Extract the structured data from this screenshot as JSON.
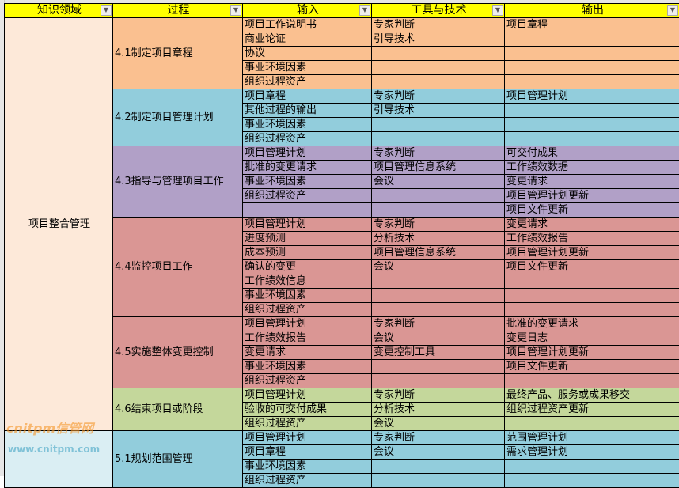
{
  "headers": [
    "知识领域",
    "过程",
    "输入",
    "工具与技术",
    "输出"
  ],
  "dropdown_icon": "filter-dropdown-icon",
  "areas": [
    {
      "name": "项目整合管理",
      "color": "#fde9d9"
    },
    {
      "name": "",
      "color": "#daeef3"
    }
  ],
  "groups": [
    {
      "area": 0,
      "process": "4.1制定项目章程",
      "color": "#fac090",
      "rows": [
        [
          "项目工作说明书",
          "专家判断",
          "项目章程"
        ],
        [
          "商业论证",
          "引导技术",
          ""
        ],
        [
          "协议",
          "",
          ""
        ],
        [
          "事业环境因素",
          "",
          ""
        ],
        [
          "组织过程资产",
          "",
          ""
        ]
      ]
    },
    {
      "area": 0,
      "process": "4.2制定项目管理计划",
      "color": "#92cddc",
      "rows": [
        [
          "项目章程",
          "专家判断",
          "项目管理计划"
        ],
        [
          "其他过程的输出",
          "引导技术",
          ""
        ],
        [
          "事业环境因素",
          "",
          ""
        ],
        [
          "组织过程资产",
          "",
          ""
        ]
      ]
    },
    {
      "area": 0,
      "process": "4.3指导与管理项目工作",
      "color": "#b1a0c7",
      "rows": [
        [
          "项目管理计划",
          "专家判断",
          "可交付成果"
        ],
        [
          "批准的变更请求",
          "项目管理信息系统",
          "工作绩效数据"
        ],
        [
          "事业环境因素",
          "会议",
          "变更请求"
        ],
        [
          "组织过程资产",
          "",
          "项目管理计划更新"
        ],
        [
          "",
          "",
          "项目文件更新"
        ]
      ]
    },
    {
      "area": 0,
      "process": "4.4监控项目工作",
      "color": "#da9694",
      "rows": [
        [
          "项目管理计划",
          "专家判断",
          "变更请求"
        ],
        [
          "进度预测",
          "分析技术",
          "工作绩效报告"
        ],
        [
          "成本预测",
          "项目管理信息系统",
          "项目管理计划更新"
        ],
        [
          "确认的变更",
          "会议",
          "项目文件更新"
        ],
        [
          "工作绩效信息",
          "",
          ""
        ],
        [
          "事业环境因素",
          "",
          ""
        ],
        [
          "组织过程资产",
          "",
          ""
        ]
      ]
    },
    {
      "area": 0,
      "process": "4.5实施整体变更控制",
      "color": "#da9694",
      "rows": [
        [
          "项目管理计划",
          "专家判断",
          "批准的变更请求"
        ],
        [
          "工作绩效报告",
          "会议",
          "变更日志"
        ],
        [
          "变更请求",
          "变更控制工具",
          "项目管理计划更新"
        ],
        [
          "事业环境因素",
          "",
          "项目文件更新"
        ],
        [
          "组织过程资产",
          "",
          ""
        ]
      ]
    },
    {
      "area": 0,
      "process": "4.6结束项目或阶段",
      "color": "#c4d79b",
      "rows": [
        [
          "项目管理计划",
          "专家判断",
          "最终产品、服务或成果移交"
        ],
        [
          "验收的可交付成果",
          "分析技术",
          "组织过程资产更新"
        ],
        [
          "组织过程资产",
          "会议",
          ""
        ]
      ]
    },
    {
      "area": 1,
      "process": "5.1规划范围管理",
      "color": "#92cddc",
      "rows": [
        [
          "项目管理计划",
          "专家判断",
          "范围管理计划"
        ],
        [
          "项目章程",
          "会议",
          "需求管理计划"
        ],
        [
          "事业环境因素",
          "",
          ""
        ],
        [
          "组织过程资产",
          "",
          ""
        ]
      ]
    }
  ],
  "watermark": {
    "logo": "cnitpm信管网",
    "url": "www.cnitpm.com"
  }
}
